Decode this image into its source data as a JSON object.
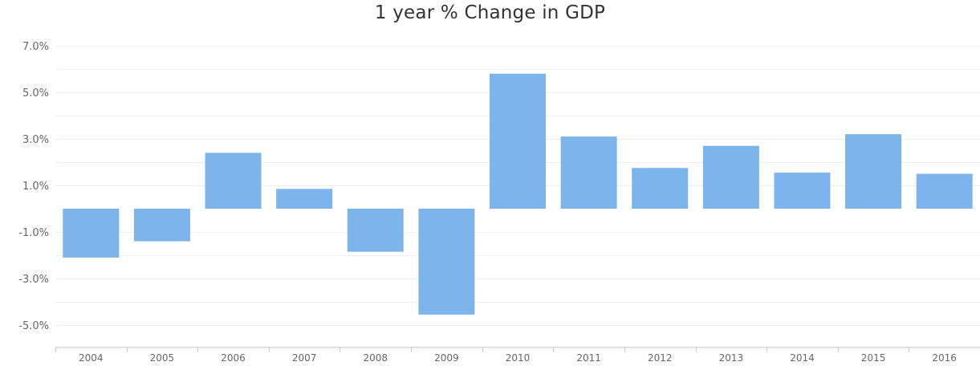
{
  "chart_data": {
    "type": "bar",
    "title": "1 year % Change in GDP",
    "xlabel": "",
    "ylabel": "",
    "categories": [
      "2004",
      "2005",
      "2006",
      "2007",
      "2008",
      "2009",
      "2010",
      "2011",
      "2012",
      "2013",
      "2014",
      "2015",
      "2016"
    ],
    "values": [
      -2.1,
      -1.4,
      2.4,
      0.85,
      -1.85,
      -4.55,
      5.8,
      3.1,
      1.75,
      2.7,
      1.55,
      3.2,
      1.5
    ],
    "ylim": [
      -6,
      7
    ],
    "y_tick_values": [
      7,
      5,
      3,
      1,
      -1,
      -3,
      -5
    ],
    "y_tick_labels": [
      "7.0%",
      "5.0%",
      "3.0%",
      "1.0%",
      "-1.0%",
      "-3.0%",
      "-5.0%"
    ],
    "grid": true,
    "legend": "none",
    "bar_color": "#7cb5ec"
  }
}
